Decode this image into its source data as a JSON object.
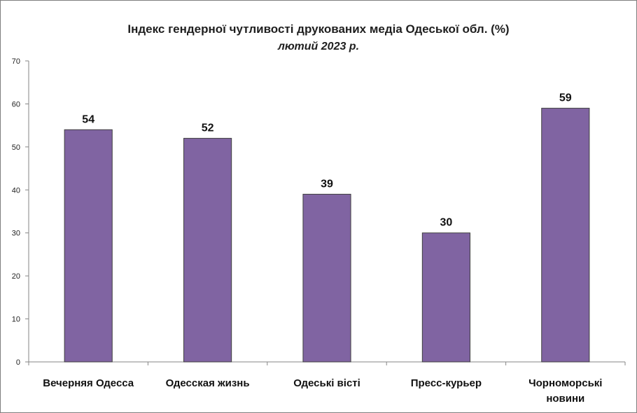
{
  "chart_data": {
    "type": "bar",
    "title": "Індекс гендерної чутливості друкованих медіа Одеської обл. (%)",
    "subtitle": "лютий 2023 р.",
    "categories": [
      [
        "Вечерняя Одесса"
      ],
      [
        "Одесская жизнь"
      ],
      [
        "Одеські вісті"
      ],
      [
        "Пресс-курьер"
      ],
      [
        "Чорноморські",
        "новини"
      ]
    ],
    "values": [
      54,
      52,
      39,
      30,
      59
    ],
    "data_labels": [
      "54",
      "52",
      "39",
      "30",
      "59"
    ],
    "ylim": [
      0,
      70
    ],
    "yticks": [
      0,
      10,
      20,
      30,
      40,
      50,
      60,
      70
    ],
    "grid": false,
    "legend": "none",
    "bar_color": "#8064a2",
    "bar_border_color": "#3f3f3f"
  }
}
